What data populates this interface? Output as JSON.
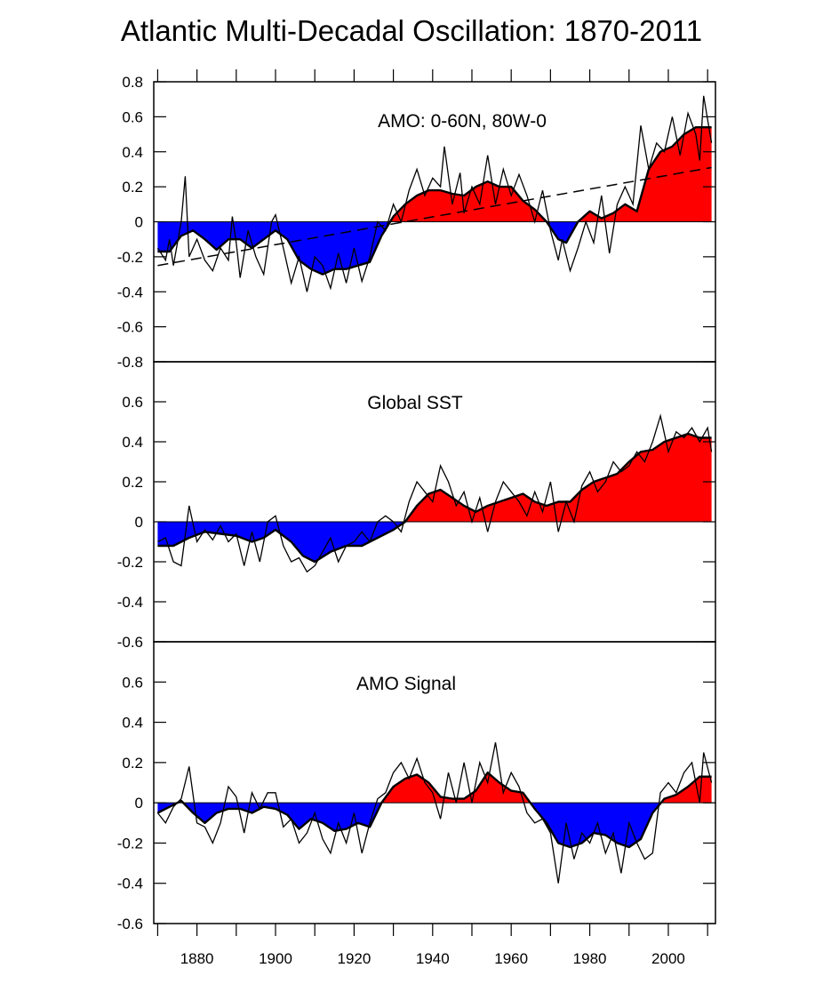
{
  "title": "Atlantic Multi-Decadal Oscillation: 1870-2011",
  "colors": {
    "positive": "#ff0000",
    "negative": "#0000ff",
    "line": "#000000",
    "background": "#ffffff"
  },
  "chart_data": [
    {
      "type": "area",
      "title": "AMO: 0-60N, 80W-0",
      "ylim": [
        -0.8,
        0.8
      ],
      "yticks": [
        -0.8,
        -0.6,
        -0.4,
        -0.2,
        0,
        0.2,
        0.4,
        0.6,
        0.8
      ],
      "ytick_labels": [
        "-0.8",
        "-0.6",
        "-0.4",
        "-0.2",
        "0",
        "0.2",
        "0.4",
        "0.6",
        "0.8"
      ],
      "fill": "red above zero, blue below zero",
      "smoothed": {
        "x": [
          1870,
          1873,
          1876,
          1879,
          1882,
          1885,
          1888,
          1891,
          1894,
          1897,
          1900,
          1903,
          1906,
          1909,
          1912,
          1915,
          1918,
          1921,
          1924,
          1927,
          1930,
          1933,
          1936,
          1939,
          1942,
          1945,
          1948,
          1951,
          1954,
          1957,
          1960,
          1963,
          1966,
          1969,
          1972,
          1974,
          1977,
          1980,
          1983,
          1986,
          1989,
          1992,
          1995,
          1998,
          2001,
          2004,
          2007,
          2011
        ],
        "values": [
          -0.17,
          -0.17,
          -0.08,
          -0.05,
          -0.1,
          -0.16,
          -0.1,
          -0.1,
          -0.15,
          -0.1,
          -0.05,
          -0.1,
          -0.22,
          -0.27,
          -0.3,
          -0.27,
          -0.27,
          -0.25,
          -0.23,
          -0.08,
          0.03,
          0.1,
          0.15,
          0.18,
          0.18,
          0.16,
          0.15,
          0.2,
          0.23,
          0.2,
          0.2,
          0.12,
          0.07,
          0.0,
          -0.1,
          -0.12,
          0.0,
          0.06,
          0.02,
          0.05,
          0.1,
          0.06,
          0.3,
          0.4,
          0.43,
          0.5,
          0.54,
          0.54
        ]
      },
      "annual": {
        "x": [
          1870,
          1872,
          1873,
          1874,
          1876,
          1877,
          1878,
          1880,
          1882,
          1884,
          1886,
          1888,
          1889,
          1890,
          1891,
          1893,
          1895,
          1897,
          1899,
          1900,
          1902,
          1904,
          1906,
          1908,
          1910,
          1912,
          1914,
          1916,
          1918,
          1920,
          1922,
          1924,
          1926,
          1928,
          1930,
          1932,
          1934,
          1936,
          1938,
          1940,
          1942,
          1943,
          1945,
          1947,
          1948,
          1950,
          1952,
          1954,
          1956,
          1958,
          1960,
          1962,
          1964,
          1966,
          1968,
          1970,
          1972,
          1973,
          1975,
          1977,
          1979,
          1981,
          1983,
          1985,
          1987,
          1989,
          1991,
          1993,
          1995,
          1997,
          1999,
          2001,
          2003,
          2005,
          2007,
          2008,
          2009,
          2011
        ],
        "values": [
          -0.15,
          -0.22,
          -0.1,
          -0.25,
          0.0,
          0.26,
          -0.2,
          -0.1,
          -0.22,
          -0.28,
          -0.15,
          -0.22,
          0.03,
          -0.12,
          -0.32,
          -0.05,
          -0.2,
          -0.3,
          0.0,
          0.04,
          -0.15,
          -0.35,
          -0.2,
          -0.4,
          -0.2,
          -0.25,
          -0.38,
          -0.18,
          -0.35,
          -0.15,
          -0.34,
          -0.2,
          0.0,
          -0.05,
          0.1,
          0.0,
          0.18,
          0.3,
          0.15,
          0.25,
          0.2,
          0.43,
          0.1,
          0.28,
          0.05,
          0.2,
          0.1,
          0.38,
          0.1,
          0.3,
          0.15,
          0.27,
          0.15,
          0.0,
          0.18,
          -0.05,
          -0.22,
          -0.1,
          -0.28,
          -0.15,
          0.0,
          -0.12,
          0.15,
          -0.18,
          0.1,
          0.2,
          0.1,
          0.55,
          0.3,
          0.45,
          0.4,
          0.6,
          0.38,
          0.62,
          0.5,
          0.35,
          0.72,
          0.45
        ]
      },
      "trend": {
        "type": "linear",
        "style": "dashed",
        "x": [
          1870,
          2011
        ],
        "values": [
          -0.25,
          0.31
        ]
      }
    },
    {
      "type": "area",
      "title": "Global SST",
      "ylim": [
        -0.6,
        0.8
      ],
      "yticks": [
        -0.6,
        -0.4,
        -0.2,
        0,
        0.2,
        0.4,
        0.6
      ],
      "ytick_labels": [
        "-0.6",
        "-0.4",
        "-0.2",
        "0",
        "0.2",
        "0.4",
        "0.6"
      ],
      "fill": "red above zero, blue below zero",
      "smoothed": {
        "x": [
          1870,
          1874,
          1878,
          1882,
          1886,
          1890,
          1894,
          1897,
          1900,
          1904,
          1907,
          1910,
          1914,
          1918,
          1922,
          1926,
          1930,
          1933,
          1936,
          1939,
          1942,
          1945,
          1948,
          1951,
          1954,
          1957,
          1960,
          1963,
          1966,
          1969,
          1972,
          1975,
          1978,
          1981,
          1984,
          1987,
          1990,
          1993,
          1996,
          1999,
          2002,
          2005,
          2008,
          2011
        ],
        "values": [
          -0.12,
          -0.12,
          -0.08,
          -0.05,
          -0.06,
          -0.07,
          -0.1,
          -0.08,
          -0.04,
          -0.1,
          -0.17,
          -0.2,
          -0.15,
          -0.12,
          -0.12,
          -0.08,
          -0.04,
          0.0,
          0.08,
          0.14,
          0.16,
          0.12,
          0.08,
          0.05,
          0.08,
          0.1,
          0.12,
          0.14,
          0.1,
          0.08,
          0.1,
          0.1,
          0.16,
          0.2,
          0.22,
          0.24,
          0.3,
          0.35,
          0.36,
          0.4,
          0.42,
          0.44,
          0.42,
          0.42
        ]
      },
      "annual": {
        "x": [
          1870,
          1872,
          1874,
          1876,
          1878,
          1880,
          1882,
          1884,
          1886,
          1888,
          1890,
          1892,
          1894,
          1896,
          1898,
          1900,
          1902,
          1904,
          1906,
          1908,
          1910,
          1912,
          1914,
          1916,
          1918,
          1920,
          1922,
          1924,
          1926,
          1928,
          1930,
          1932,
          1934,
          1936,
          1938,
          1940,
          1942,
          1944,
          1946,
          1948,
          1950,
          1952,
          1954,
          1956,
          1958,
          1960,
          1962,
          1964,
          1966,
          1968,
          1970,
          1972,
          1974,
          1976,
          1978,
          1980,
          1982,
          1984,
          1986,
          1988,
          1990,
          1992,
          1994,
          1996,
          1998,
          2000,
          2002,
          2004,
          2006,
          2008,
          2010,
          2011
        ],
        "values": [
          -0.1,
          -0.08,
          -0.2,
          -0.22,
          0.08,
          -0.1,
          -0.04,
          -0.09,
          -0.02,
          -0.1,
          -0.06,
          -0.22,
          -0.05,
          -0.2,
          0.0,
          0.03,
          -0.12,
          -0.2,
          -0.18,
          -0.25,
          -0.22,
          -0.15,
          -0.08,
          -0.2,
          -0.12,
          -0.1,
          -0.05,
          -0.1,
          0.0,
          0.03,
          0.0,
          -0.05,
          0.1,
          0.2,
          0.15,
          0.1,
          0.28,
          0.2,
          0.08,
          0.15,
          0.0,
          0.12,
          -0.05,
          0.1,
          0.2,
          0.15,
          0.1,
          0.03,
          0.15,
          0.05,
          0.2,
          -0.05,
          0.1,
          0.0,
          0.18,
          0.25,
          0.15,
          0.2,
          0.3,
          0.25,
          0.28,
          0.35,
          0.3,
          0.4,
          0.53,
          0.35,
          0.45,
          0.42,
          0.47,
          0.4,
          0.47,
          0.35
        ]
      }
    },
    {
      "type": "area",
      "title": "AMO Signal",
      "ylim": [
        -0.6,
        0.8
      ],
      "yticks": [
        -0.6,
        -0.4,
        -0.2,
        0,
        0.2,
        0.4,
        0.6
      ],
      "ytick_labels": [
        "-0.6",
        "-0.4",
        "-0.2",
        "0",
        "0.2",
        "0.4",
        "0.6"
      ],
      "xticks": [
        1880,
        1900,
        1920,
        1940,
        1960,
        1980,
        2000
      ],
      "xtick_labels": [
        "1880",
        "1900",
        "1920",
        "1940",
        "1960",
        "1980",
        "2000"
      ],
      "xlim": [
        1869,
        2012
      ],
      "fill": "red above zero, blue below zero",
      "smoothed": {
        "x": [
          1870,
          1873,
          1876,
          1879,
          1882,
          1885,
          1888,
          1891,
          1894,
          1897,
          1900,
          1903,
          1906,
          1909,
          1912,
          1915,
          1918,
          1921,
          1924,
          1927,
          1930,
          1933,
          1936,
          1939,
          1942,
          1945,
          1948,
          1951,
          1954,
          1957,
          1960,
          1963,
          1966,
          1969,
          1972,
          1975,
          1978,
          1981,
          1984,
          1987,
          1990,
          1993,
          1996,
          1999,
          2002,
          2005,
          2008,
          2011
        ],
        "values": [
          -0.05,
          -0.02,
          0.01,
          -0.05,
          -0.1,
          -0.05,
          -0.03,
          -0.03,
          -0.05,
          -0.02,
          -0.03,
          -0.06,
          -0.13,
          -0.08,
          -0.1,
          -0.14,
          -0.13,
          -0.1,
          -0.12,
          0.0,
          0.08,
          0.12,
          0.14,
          0.1,
          0.03,
          0.02,
          0.02,
          0.06,
          0.15,
          0.1,
          0.06,
          0.05,
          -0.03,
          -0.1,
          -0.2,
          -0.22,
          -0.2,
          -0.15,
          -0.16,
          -0.2,
          -0.22,
          -0.18,
          -0.05,
          0.02,
          0.04,
          0.08,
          0.13,
          0.13
        ]
      },
      "annual": {
        "x": [
          1870,
          1872,
          1874,
          1876,
          1878,
          1880,
          1882,
          1884,
          1886,
          1888,
          1890,
          1892,
          1894,
          1896,
          1898,
          1900,
          1902,
          1904,
          1906,
          1908,
          1910,
          1912,
          1914,
          1916,
          1918,
          1920,
          1922,
          1924,
          1926,
          1928,
          1930,
          1932,
          1934,
          1936,
          1938,
          1940,
          1942,
          1944,
          1946,
          1948,
          1950,
          1952,
          1954,
          1956,
          1958,
          1960,
          1962,
          1964,
          1966,
          1968,
          1970,
          1972,
          1974,
          1976,
          1978,
          1980,
          1982,
          1984,
          1986,
          1988,
          1990,
          1992,
          1994,
          1996,
          1998,
          2000,
          2002,
          2004,
          2006,
          2008,
          2009,
          2011
        ],
        "values": [
          -0.05,
          -0.1,
          -0.02,
          0.02,
          0.18,
          -0.1,
          -0.12,
          -0.2,
          -0.1,
          0.08,
          0.03,
          -0.15,
          0.05,
          -0.03,
          0.05,
          0.05,
          -0.12,
          -0.08,
          -0.2,
          -0.15,
          -0.05,
          -0.18,
          -0.25,
          -0.1,
          -0.2,
          -0.05,
          -0.25,
          -0.1,
          0.02,
          0.05,
          0.15,
          0.2,
          0.12,
          0.22,
          0.1,
          0.05,
          -0.08,
          0.15,
          0.0,
          0.2,
          0.0,
          0.2,
          0.1,
          0.3,
          0.05,
          0.15,
          0.08,
          -0.05,
          -0.1,
          -0.08,
          -0.15,
          -0.4,
          -0.1,
          -0.28,
          -0.15,
          -0.2,
          -0.1,
          -0.25,
          -0.15,
          -0.35,
          -0.1,
          -0.2,
          -0.28,
          -0.25,
          0.05,
          0.1,
          0.05,
          0.15,
          0.2,
          0.0,
          0.25,
          0.1
        ]
      }
    }
  ]
}
